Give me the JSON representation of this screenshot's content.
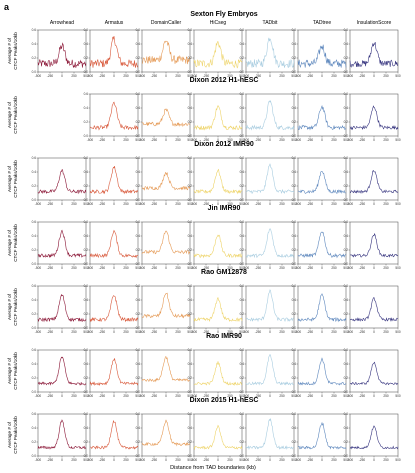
{
  "figure": {
    "panel_label": "a",
    "x_axis_label": "Distance from TAD boundaries (kb)"
  },
  "chart_data": {
    "type": "line",
    "panel_label": "a",
    "columns": [
      "Arrowhead",
      "Armatus",
      "DomainCaller",
      "HiCseg",
      "TADbit",
      "TADtree",
      "InsulationScore"
    ],
    "column_colors": [
      "#8a1535",
      "#d8583a",
      "#e59a56",
      "#eed46a",
      "#a9cde0",
      "#5d87bd",
      "#35337e"
    ],
    "ylabel_lines": [
      "Average # of",
      "CTCF Peaks/10kb"
    ],
    "xlabel": "Distance from TAD boundaries (kb)",
    "x_ticks": [
      "-500",
      "-250",
      "0",
      "250",
      "500"
    ],
    "xlim": [
      -500,
      500
    ],
    "rows": [
      {
        "title": "Sexton Fly Embryos",
        "ylim": [
          0.0,
          0.6
        ],
        "y_ticks": [
          "0.6",
          "0.4",
          "0.2",
          "0.0"
        ],
        "missing_columns": [],
        "peak_height": [
          0.25,
          0.35,
          0.28,
          0.3,
          0.38,
          0.25,
          0.3
        ],
        "noise": 0.12
      },
      {
        "title": "Dixon 2012 H1-hESC",
        "ylim": [
          0.0,
          0.6
        ],
        "y_ticks": [
          "0.6",
          "0.4",
          "0.2",
          "0.0"
        ],
        "missing_columns": [
          0
        ],
        "peak_height": [
          0,
          0.35,
          0.2,
          0.3,
          0.38,
          0.3,
          0.3
        ],
        "noise": 0.06
      },
      {
        "title": "Dixon 2012 IMR90",
        "ylim": [
          0.0,
          0.6
        ],
        "y_ticks": [
          "0.6",
          "0.4",
          "0.2",
          "0.0"
        ],
        "missing_columns": [],
        "peak_height": [
          0.3,
          0.35,
          0.22,
          0.3,
          0.38,
          0.3,
          0.3
        ],
        "noise": 0.05
      },
      {
        "title": "Jin IMR90",
        "ylim": [
          0.0,
          0.6
        ],
        "y_ticks": [
          "0.6",
          "0.4",
          "0.2",
          "0.0"
        ],
        "missing_columns": [],
        "peak_height": [
          0.35,
          0.35,
          0.3,
          0.3,
          0.38,
          0.35,
          0.3
        ],
        "noise": 0.05
      },
      {
        "title": "Rao GM12878",
        "ylim": [
          0.0,
          0.6
        ],
        "y_ticks": [
          "0.6",
          "0.4",
          "0.2",
          "0.0"
        ],
        "missing_columns": [],
        "peak_height": [
          0.35,
          0.35,
          0.33,
          0.3,
          0.4,
          0.35,
          0.3
        ],
        "noise": 0.05
      },
      {
        "title": "Rao IMR90",
        "ylim": [
          0.0,
          0.6
        ],
        "y_ticks": [
          "0.6",
          "0.4",
          "0.2",
          "0.0"
        ],
        "missing_columns": [],
        "peak_height": [
          0.38,
          0.35,
          0.33,
          0.3,
          0.4,
          0.35,
          0.3
        ],
        "noise": 0.04
      },
      {
        "title": "Dixon 2015 H1-hESC",
        "ylim": [
          0.0,
          0.6
        ],
        "y_ticks": [
          "0.6",
          "0.4",
          "0.2",
          "0.0"
        ],
        "missing_columns": [],
        "peak_height": [
          0.38,
          0.38,
          0.33,
          0.3,
          0.4,
          0.35,
          0.3
        ],
        "noise": 0.04
      }
    ]
  }
}
